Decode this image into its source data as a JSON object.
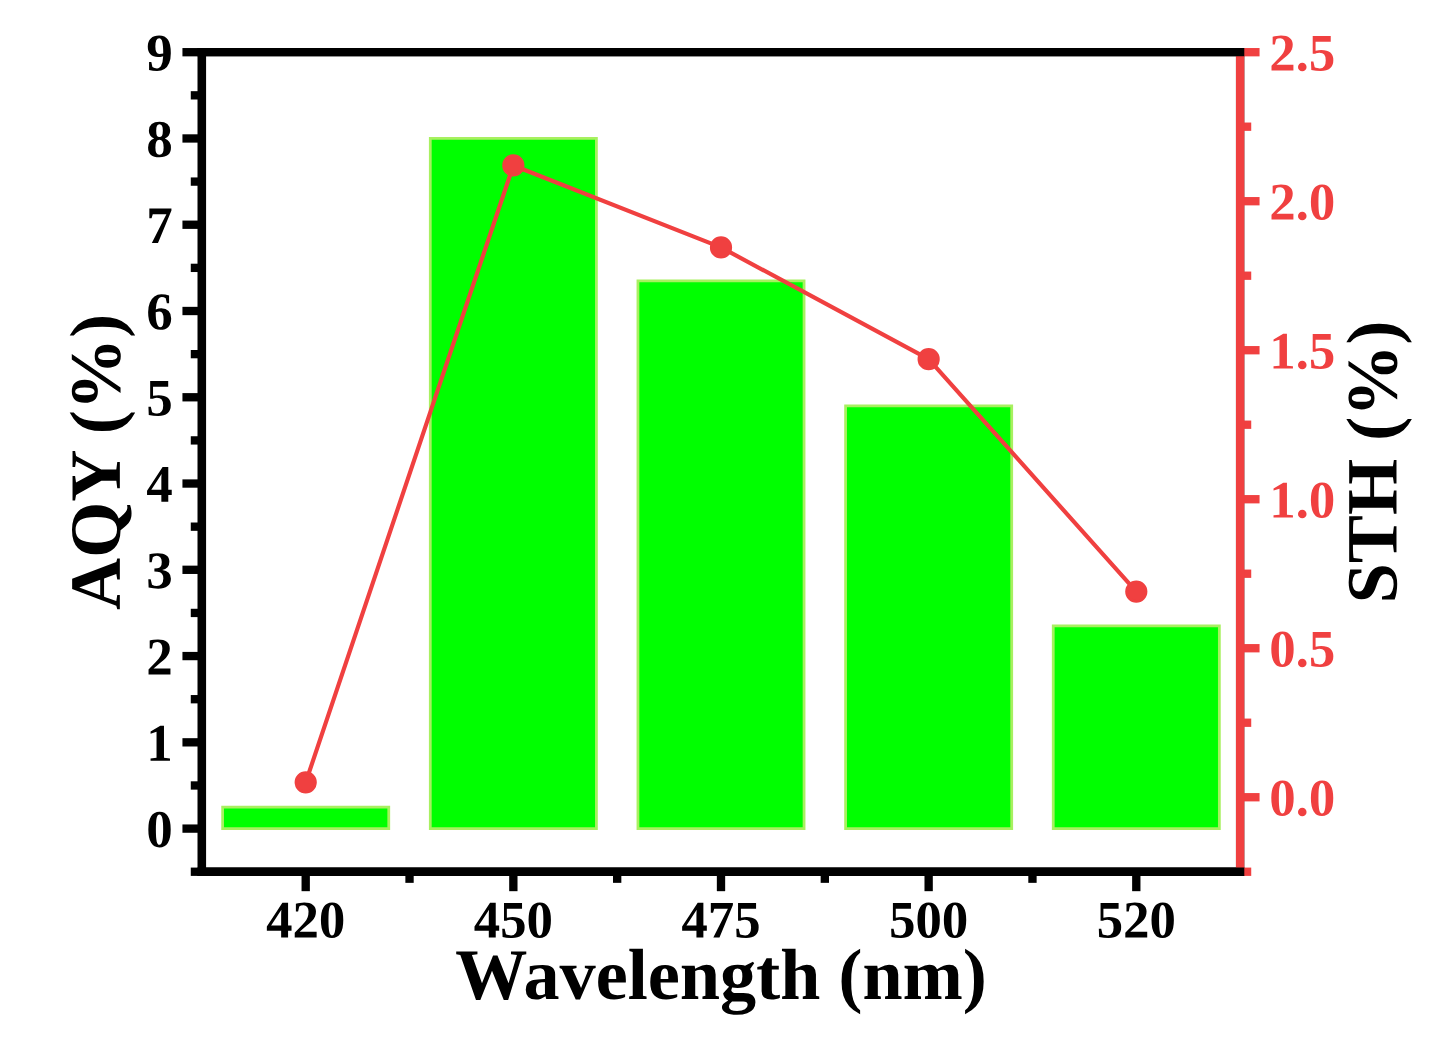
{
  "chart_data": {
    "type": "bar",
    "xlabel": "Wavelength (nm)",
    "ylabel": "AQY (%)",
    "y2label": "STH (%)",
    "categories": [
      "420",
      "450",
      "475",
      "500",
      "520"
    ],
    "series": [
      {
        "color": "#00ff00",
        "values": [
          0.25,
          8.0,
          6.35,
          4.9,
          2.35
        ]
      },
      {
        "type": "line",
        "axis": "y2",
        "color": "#f04040",
        "values": [
          0.05,
          2.12,
          1.845,
          1.47,
          0.69
        ]
      }
    ],
    "ylim": [
      -0.5,
      9
    ],
    "yticks": [
      0,
      1,
      2,
      3,
      4,
      5,
      6,
      7,
      8,
      9
    ],
    "y2lim": [
      -0.25,
      2.5
    ],
    "y2ticks": [
      {
        "value": 0,
        "label": "0.0"
      },
      {
        "value": 0.5,
        "label": "0.5"
      },
      {
        "value": 1,
        "label": "1.0"
      },
      {
        "value": 1.5,
        "label": "1.5"
      },
      {
        "value": 2,
        "label": "2.0"
      },
      {
        "value": 2.5,
        "label": "2.5"
      }
    ],
    "marker": "circle",
    "line_style": "solid",
    "grid": false,
    "legend": false
  }
}
